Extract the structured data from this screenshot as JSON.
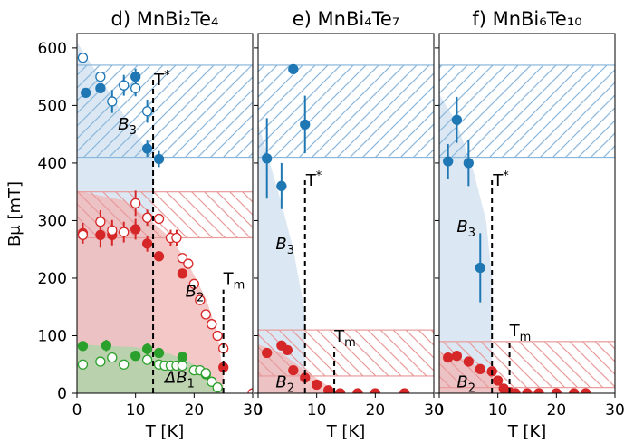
{
  "chart_data": {
    "type": "scatter",
    "ylabel": "Bμ [mT]",
    "ylim": [
      0,
      625
    ],
    "ytick_labels": [
      "0",
      "100",
      "200",
      "300",
      "400",
      "500",
      "600"
    ],
    "yticks": [
      0,
      100,
      200,
      300,
      400,
      500,
      600
    ],
    "colors": {
      "blue": "#1f77b4",
      "red": "#d62728",
      "green": "#2ca02c",
      "blue_fill": "#cfe0ef",
      "red_fill": "#f2b6b6",
      "green_fill": "#a9d6a6"
    },
    "panels": [
      {
        "title": "d) MnBi₂Te₄",
        "xlabel": "T [K]",
        "xlim": [
          0,
          30
        ],
        "xticks": [
          0,
          10,
          20,
          30
        ],
        "xtick_labels": [
          "0",
          "10",
          "20",
          "30"
        ],
        "hatch_bands": [
          {
            "color": "blue",
            "ymin": 410,
            "ymax": 570
          },
          {
            "color": "red",
            "ymin": 270,
            "ymax": 350
          }
        ],
        "shaded_regions": [
          {
            "color": "blue",
            "points": [
              [
                0,
                610
              ],
              [
                13,
                405
              ],
              [
                13,
                0
              ],
              [
                0,
                0
              ]
            ]
          },
          {
            "color": "red",
            "points": [
              [
                0,
                352
              ],
              [
                8,
                335
              ],
              [
                12,
                305
              ],
              [
                16,
                270
              ],
              [
                19,
                225
              ],
              [
                22,
                165
              ],
              [
                24,
                105
              ],
              [
                25,
                30
              ],
              [
                25,
                0
              ],
              [
                0,
                0
              ]
            ]
          },
          {
            "color": "green",
            "points": [
              [
                0,
                85
              ],
              [
                10,
                80
              ],
              [
                16,
                68
              ],
              [
                20,
                50
              ],
              [
                23,
                30
              ],
              [
                25,
                0
              ],
              [
                0,
                0
              ]
            ]
          }
        ],
        "dashed_lines": [
          {
            "x": 13,
            "ymin": 0,
            "ymax": 545,
            "label": "T*"
          },
          {
            "x": 25,
            "ymin": 0,
            "ymax": 180,
            "label": "Tm"
          }
        ],
        "annotations": [
          {
            "text": "B3",
            "x": 7,
            "y": 458
          },
          {
            "text": "B2",
            "x": 18.5,
            "y": 168
          },
          {
            "text": "ΔB1",
            "x": 15,
            "y": 18
          }
        ],
        "series": [
          {
            "name": "B3 filled",
            "color": "blue",
            "filled": true,
            "points": [
              [
                1.5,
                522,
                0
              ],
              [
                4,
                530,
                0
              ],
              [
                10,
                550,
                14
              ],
              [
                12,
                425,
                14
              ],
              [
                14,
                407,
                14
              ]
            ]
          },
          {
            "name": "B3 open",
            "color": "blue",
            "filled": false,
            "points": [
              [
                1,
                583,
                8
              ],
              [
                4,
                550,
                8
              ],
              [
                6,
                507,
                20
              ],
              [
                8,
                535,
                18
              ],
              [
                10,
                530,
                14
              ],
              [
                12,
                490,
                20
              ]
            ]
          },
          {
            "name": "B2 filled",
            "color": "red",
            "filled": true,
            "points": [
              [
                1,
                278,
                18
              ],
              [
                4,
                275,
                22
              ],
              [
                6,
                275,
                18
              ],
              [
                10,
                285,
                18
              ],
              [
                12,
                260,
                14
              ],
              [
                14,
                238,
                8
              ],
              [
                18,
                208,
                6
              ],
              [
                23,
                120,
                6
              ],
              [
                25,
                45,
                6
              ]
            ]
          },
          {
            "name": "B2 open",
            "color": "red",
            "filled": false,
            "points": [
              [
                1,
                275,
                14
              ],
              [
                4,
                298,
                20
              ],
              [
                6,
                283,
                18
              ],
              [
                8,
                280,
                18
              ],
              [
                10,
                330,
                22
              ],
              [
                12,
                305,
                14
              ],
              [
                14,
                303,
                8
              ],
              [
                16,
                270,
                14
              ],
              [
                17,
                270,
                14
              ],
              [
                18,
                235,
                6
              ],
              [
                19,
                225,
                6
              ],
              [
                20,
                190,
                6
              ],
              [
                21,
                162,
                6
              ],
              [
                22,
                137,
                6
              ],
              [
                23,
                120,
                6
              ],
              [
                24,
                100,
                6
              ],
              [
                25,
                78,
                6
              ],
              [
                30,
                0,
                0
              ]
            ]
          },
          {
            "name": "dB1 filled",
            "color": "green",
            "filled": true,
            "points": [
              [
                1,
                82,
                6
              ],
              [
                5,
                83,
                10
              ],
              [
                10,
                65,
                6
              ],
              [
                12,
                77,
                10
              ],
              [
                14,
                70,
                6
              ],
              [
                18,
                63,
                6
              ],
              [
                22,
                33,
                6
              ]
            ]
          },
          {
            "name": "dB1 open",
            "color": "green",
            "filled": false,
            "points": [
              [
                1,
                50,
                4
              ],
              [
                4,
                55,
                4
              ],
              [
                6,
                62,
                4
              ],
              [
                8,
                50,
                4
              ],
              [
                12,
                58,
                4
              ],
              [
                14,
                50,
                4
              ],
              [
                15,
                48,
                4
              ],
              [
                16,
                48,
                4
              ],
              [
                17,
                48,
                4
              ],
              [
                18,
                48,
                4
              ],
              [
                20,
                40,
                4
              ],
              [
                21,
                40,
                4
              ],
              [
                22,
                35,
                4
              ],
              [
                23,
                20,
                4
              ],
              [
                24,
                10,
                4
              ]
            ]
          }
        ]
      },
      {
        "title": "e) MnBi₄Te₇",
        "xlabel": "T [K]",
        "xlim": [
          0,
          30
        ],
        "xticks": [
          0,
          10,
          20,
          30
        ],
        "xtick_labels": [
          "0",
          "10",
          "20",
          "30"
        ],
        "hatch_bands": [
          {
            "color": "blue",
            "ymin": 410,
            "ymax": 570
          },
          {
            "color": "red",
            "ymin": 30,
            "ymax": 110
          }
        ],
        "shaded_regions": [
          {
            "color": "blue",
            "points": [
              [
                0,
                470
              ],
              [
                2,
                400
              ],
              [
                4,
                330
              ],
              [
                6,
                250
              ],
              [
                8,
                140
              ],
              [
                8,
                0
              ],
              [
                0,
                0
              ]
            ]
          },
          {
            "color": "red",
            "points": [
              [
                0,
                85
              ],
              [
                4,
                70
              ],
              [
                8,
                40
              ],
              [
                12,
                12
              ],
              [
                13,
                0
              ],
              [
                0,
                0
              ]
            ]
          }
        ],
        "dashed_lines": [
          {
            "x": 8,
            "ymin": 0,
            "ymax": 370,
            "label": "T*"
          },
          {
            "x": 13,
            "ymin": 0,
            "ymax": 80,
            "label": "Tm"
          }
        ],
        "annotations": [
          {
            "text": "B3",
            "x": 3,
            "y": 250
          },
          {
            "text": "B2",
            "x": 3,
            "y": 10
          }
        ],
        "series": [
          {
            "name": "B3",
            "color": "blue",
            "filled": true,
            "points": [
              [
                1.5,
                408,
                70
              ],
              [
                4,
                360,
                40
              ],
              [
                6,
                563,
                0
              ],
              [
                8,
                467,
                50
              ]
            ]
          },
          {
            "name": "B2",
            "color": "red",
            "filled": true,
            "points": [
              [
                1.5,
                70,
                0
              ],
              [
                4,
                83,
                0
              ],
              [
                5,
                75,
                0
              ],
              [
                6,
                40,
                0
              ],
              [
                8,
                27,
                0
              ],
              [
                10,
                15,
                0
              ],
              [
                12,
                5,
                0
              ],
              [
                14,
                0,
                0
              ],
              [
                17,
                0,
                0
              ],
              [
                20,
                0,
                0
              ],
              [
                25,
                0,
                0
              ]
            ]
          }
        ]
      },
      {
        "title": "f) MnBi₆Te₁₀",
        "xlabel": "T [K]",
        "xlim": [
          0,
          30
        ],
        "xticks": [
          0,
          10,
          20,
          30
        ],
        "xtick_labels": [
          "0",
          "10",
          "20",
          "30"
        ],
        "hatch_bands": [
          {
            "color": "blue",
            "ymin": 410,
            "ymax": 570
          },
          {
            "color": "red",
            "ymin": 10,
            "ymax": 90
          }
        ],
        "shaded_regions": [
          {
            "color": "blue",
            "points": [
              [
                0,
                520
              ],
              [
                3,
                470
              ],
              [
                6,
                380
              ],
              [
                8,
                300
              ],
              [
                9,
                200
              ],
              [
                9,
                0
              ],
              [
                0,
                0
              ]
            ]
          },
          {
            "color": "red",
            "points": [
              [
                0,
                70
              ],
              [
                4,
                60
              ],
              [
                8,
                40
              ],
              [
                10,
                20
              ],
              [
                12,
                0
              ],
              [
                0,
                0
              ]
            ]
          }
        ],
        "dashed_lines": [
          {
            "x": 9,
            "ymin": 0,
            "ymax": 370,
            "label": "T*"
          },
          {
            "x": 12,
            "ymin": 0,
            "ymax": 90,
            "label": "Tm"
          }
        ],
        "annotations": [
          {
            "text": "B3",
            "x": 3,
            "y": 280
          },
          {
            "text": "B2",
            "x": 3,
            "y": 10
          }
        ],
        "series": [
          {
            "name": "B3",
            "color": "blue",
            "filled": true,
            "points": [
              [
                1.5,
                403,
                30
              ],
              [
                3,
                475,
                40
              ],
              [
                5,
                400,
                40
              ],
              [
                7,
                218,
                60
              ]
            ]
          },
          {
            "name": "B2",
            "color": "red",
            "filled": true,
            "points": [
              [
                1.5,
                62,
                0
              ],
              [
                3,
                65,
                0
              ],
              [
                5,
                55,
                0
              ],
              [
                7,
                42,
                0
              ],
              [
                9,
                38,
                0
              ],
              [
                10,
                22,
                0
              ],
              [
                11,
                8,
                0
              ],
              [
                12,
                2,
                0
              ],
              [
                13,
                0,
                0
              ],
              [
                15,
                0,
                0
              ],
              [
                17,
                0,
                0
              ],
              [
                20,
                0,
                0
              ],
              [
                23,
                0,
                0
              ],
              [
                25,
                0,
                0
              ]
            ]
          }
        ]
      }
    ]
  }
}
